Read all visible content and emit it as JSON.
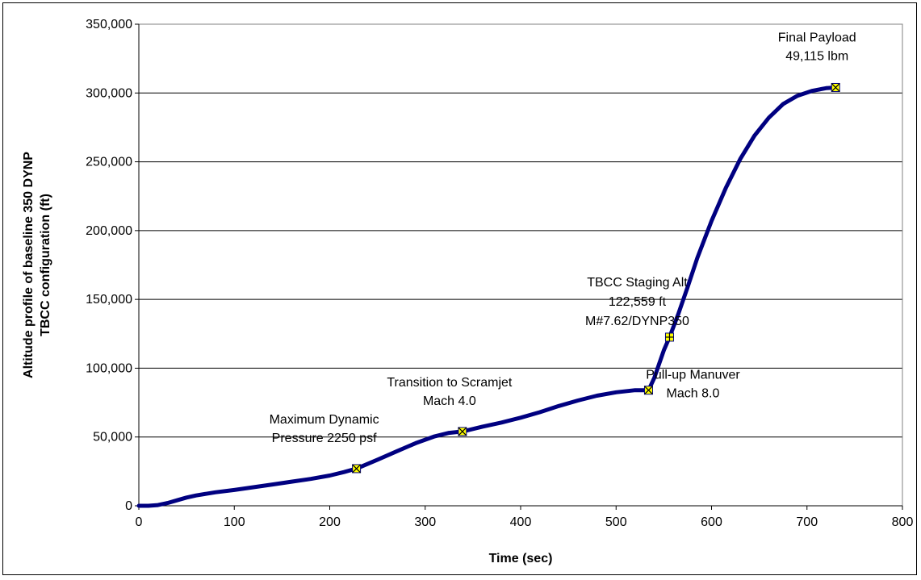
{
  "chart_data": {
    "type": "line",
    "title": "",
    "xlabel": "Time (sec)",
    "ylabel_lines": [
      "Altitude profile of baseline 350 DYNP",
      "TBCC configuration (ft)"
    ],
    "xlim": [
      0,
      800
    ],
    "ylim": [
      0,
      350000
    ],
    "x_ticks": [
      0,
      100,
      200,
      300,
      400,
      500,
      600,
      700,
      800
    ],
    "x_tick_labels": [
      "0",
      "100",
      "200",
      "300",
      "400",
      "500",
      "600",
      "700",
      "800"
    ],
    "y_ticks": [
      0,
      50000,
      100000,
      150000,
      200000,
      250000,
      300000,
      350000
    ],
    "y_tick_labels": [
      "0",
      "50,000",
      "100,000",
      "150,000",
      "200,000",
      "250,000",
      "300,000",
      "350,000"
    ],
    "grid": "horizontal",
    "line_color": "#000080",
    "marker_color": "#ffff00",
    "series": [
      {
        "x": [
          0,
          10,
          20,
          30,
          40,
          50,
          60,
          80,
          100,
          120,
          140,
          160,
          180,
          200,
          215,
          228,
          250,
          270,
          290,
          310,
          325,
          339,
          360,
          380,
          400,
          420,
          440,
          460,
          480,
          500,
          520,
          534,
          540,
          545,
          550,
          556,
          565,
          575,
          585,
          600,
          615,
          630,
          645,
          660,
          675,
          690,
          705,
          720,
          730
        ],
        "y": [
          0,
          0,
          500,
          2000,
          4000,
          6000,
          7500,
          9800,
          11500,
          13500,
          15500,
          17500,
          19500,
          22000,
          24500,
          27000,
          33500,
          39500,
          45500,
          50500,
          53000,
          54000,
          57500,
          60500,
          64000,
          68000,
          72500,
          76500,
          80000,
          82500,
          84000,
          84000,
          93000,
          103000,
          113000,
          122559,
          139000,
          159000,
          180000,
          207000,
          231000,
          252000,
          269000,
          282000,
          292000,
          298000,
          301500,
          303500,
          304000
        ]
      }
    ],
    "annotations": [
      {
        "id": "max-q",
        "x": 228,
        "y": 27000,
        "marker": "x",
        "lines": [
          "Maximum Dynamic",
          "Pressure 2250 psf"
        ]
      },
      {
        "id": "scramjet",
        "x": 339,
        "y": 54000,
        "marker": "x",
        "lines": [
          "Transition to Scramjet",
          "Mach 4.0"
        ]
      },
      {
        "id": "pullup",
        "x": 534,
        "y": 84000,
        "marker": "x",
        "lines": [
          "Pull-up Manuver",
          "Mach 8.0"
        ]
      },
      {
        "id": "staging",
        "x": 556,
        "y": 122559,
        "marker": "+",
        "lines": [
          "TBCC Staging Alt",
          "122,559 ft",
          "M#7.62/DYNP350"
        ]
      },
      {
        "id": "payload",
        "x": 730,
        "y": 304000,
        "marker": "x",
        "lines": [
          "Final Payload",
          "49,115 lbm"
        ]
      }
    ]
  }
}
